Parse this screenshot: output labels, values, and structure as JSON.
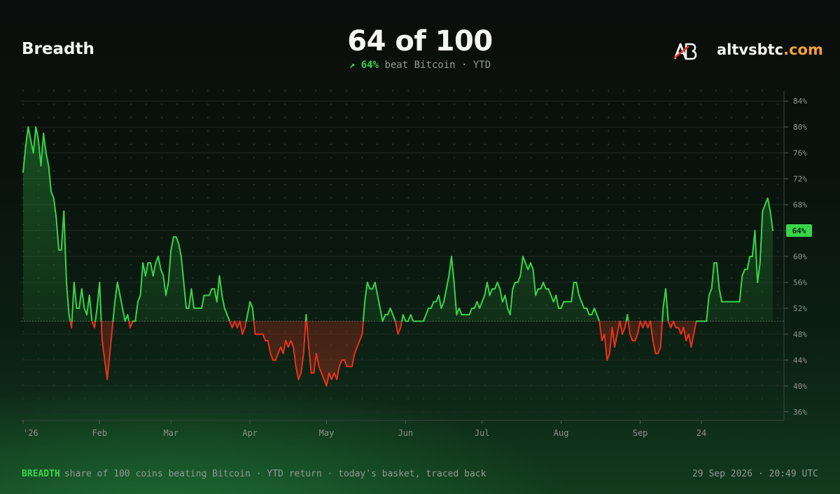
{
  "header": {
    "title": "Breadth",
    "headline": "64 of 100",
    "sub_arrow": "↗",
    "sub_value": "64%",
    "sub_text": "beat Bitcoin · YTD",
    "brand_name": "altvsbtc",
    "brand_tld": ".com",
    "logo_icon": "ab-logo-icon"
  },
  "footer": {
    "tag": "BREADTH",
    "description": "share of 100 coins beating Bitcoin · YTD return · today's basket, traced back",
    "timestamp": "29 Sep 2026 · 20:49 UTC"
  },
  "colors": {
    "above": "#39d44a",
    "below": "#e8321e",
    "accent": "#f4a03a"
  },
  "chart_data": {
    "type": "line",
    "title": "",
    "xlabel": "",
    "ylabel": "",
    "ylim": [
      35,
      85
    ],
    "y_ticks": [
      36,
      40,
      44,
      48,
      52,
      56,
      60,
      64,
      68,
      72,
      76,
      80,
      84
    ],
    "y_tick_labels": [
      "36%",
      "40%",
      "44%",
      "48%",
      "52%",
      "56%",
      "60%",
      "64%",
      "68%",
      "72%",
      "76%",
      "80%",
      "84%"
    ],
    "x_tick_labels": [
      "'26",
      "Feb",
      "Mar",
      "Apr",
      "May",
      "Jun",
      "Jul",
      "Aug",
      "Sep",
      "24"
    ],
    "x_tick_index": [
      0,
      30,
      58,
      89,
      119,
      150,
      180,
      211,
      242,
      266
    ],
    "baseline": 50,
    "current_label": "64%",
    "current_value": 64,
    "grid": true,
    "series": [
      {
        "values": [
          73,
          77,
          80,
          78,
          76,
          80,
          78,
          74,
          79,
          76,
          74,
          70,
          69,
          66,
          61,
          61,
          67,
          56,
          51,
          49,
          56,
          52,
          52,
          55,
          52,
          51,
          54,
          50,
          49,
          52,
          56,
          47,
          44,
          41,
          45,
          49,
          53,
          56,
          54,
          52,
          50,
          51,
          49,
          50,
          50,
          53,
          54,
          59,
          57,
          59,
          59,
          57,
          59,
          60,
          58,
          57,
          54,
          56,
          61,
          63,
          63,
          62,
          60,
          56,
          52,
          52,
          55,
          52,
          52,
          52,
          52,
          54,
          54,
          54,
          55,
          55,
          53,
          57,
          54,
          52,
          51,
          50,
          49,
          50,
          49,
          50,
          48,
          49,
          51,
          53,
          52,
          48,
          48,
          48,
          48,
          47,
          47,
          45,
          44,
          44,
          45,
          46,
          45,
          47,
          46,
          47,
          46,
          43,
          41,
          42,
          45,
          51,
          46,
          42,
          42,
          45,
          43,
          42,
          41,
          40,
          42,
          41,
          42,
          41,
          43,
          44,
          44,
          43,
          43,
          43,
          45,
          46,
          47,
          48,
          53,
          56,
          55,
          55,
          56,
          54,
          52,
          50,
          51,
          51,
          52,
          51,
          50,
          48,
          49,
          51,
          50,
          50,
          51,
          50,
          50,
          50,
          50,
          50,
          51,
          52,
          52,
          53,
          53,
          54,
          52,
          53,
          55,
          57,
          60,
          56,
          51,
          52,
          51,
          51,
          51,
          51,
          52,
          52,
          53,
          52,
          53,
          54,
          56,
          54,
          55,
          55,
          56,
          55,
          53,
          54,
          52,
          51,
          55,
          56,
          56,
          57,
          60,
          59,
          58,
          59,
          58,
          54,
          55,
          55,
          56,
          55,
          55,
          54,
          53,
          54,
          52,
          52,
          53,
          53,
          53,
          53,
          56,
          56,
          54,
          53,
          52,
          52,
          51,
          51,
          52,
          51,
          50,
          47,
          48,
          44,
          45,
          49,
          46,
          48,
          50,
          48,
          49,
          51,
          48,
          47,
          47,
          48,
          50,
          49,
          50,
          49,
          50,
          47,
          45,
          45,
          46,
          52,
          55,
          50,
          49,
          50,
          49,
          49,
          48,
          49,
          47,
          48,
          46,
          48,
          50,
          50,
          50,
          50,
          50,
          54,
          55,
          59,
          59,
          55,
          53,
          53,
          53,
          53,
          53,
          53,
          53,
          53,
          57,
          58,
          58,
          60,
          60,
          64,
          56,
          59,
          67,
          68,
          69,
          67,
          64
        ]
      }
    ]
  }
}
